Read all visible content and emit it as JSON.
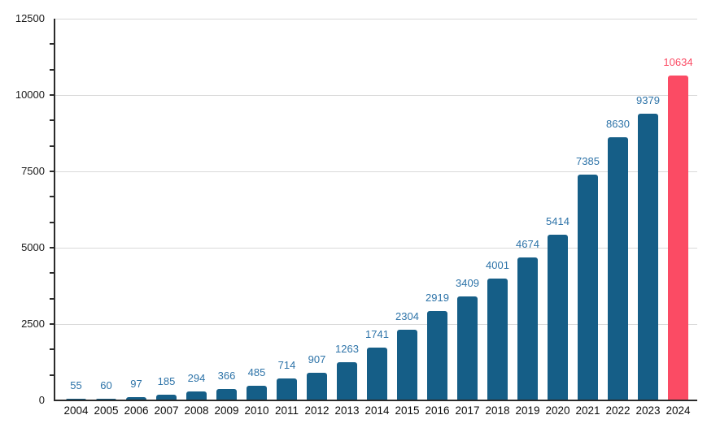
{
  "chart_data": {
    "type": "bar",
    "title": "",
    "xlabel": "",
    "ylabel": "",
    "categories": [
      "2004",
      "2005",
      "2006",
      "2007",
      "2008",
      "2009",
      "2010",
      "2011",
      "2012",
      "2013",
      "2014",
      "2015",
      "2016",
      "2017",
      "2018",
      "2019",
      "2020",
      "2021",
      "2022",
      "2023",
      "2024"
    ],
    "values": [
      55,
      60,
      97,
      185,
      294,
      366,
      485,
      714,
      907,
      1263,
      1741,
      2304,
      2919,
      3409,
      4001,
      4674,
      5414,
      7385,
      8630,
      9379,
      10634
    ],
    "data_labels_shown": true,
    "ylim": [
      0,
      12500
    ],
    "yticks": [
      0,
      2500,
      5000,
      7500,
      10000,
      12500
    ],
    "minor_ticks_per_major_interval": 2,
    "grid": "horizontal-major",
    "legend": "none",
    "bar_color_default": "#155e87",
    "bar_color_highlight": "#fb4b64",
    "highlight_index": 20,
    "value_label_color_default": "#2d73a8",
    "value_label_color_highlight": "#fb4b64",
    "gridline_color": "#d9d9d9",
    "axis_line_color": "#2b2b2b",
    "tick_label_color": "#1a1a1a",
    "x_label_color": "#0d0d0d"
  }
}
